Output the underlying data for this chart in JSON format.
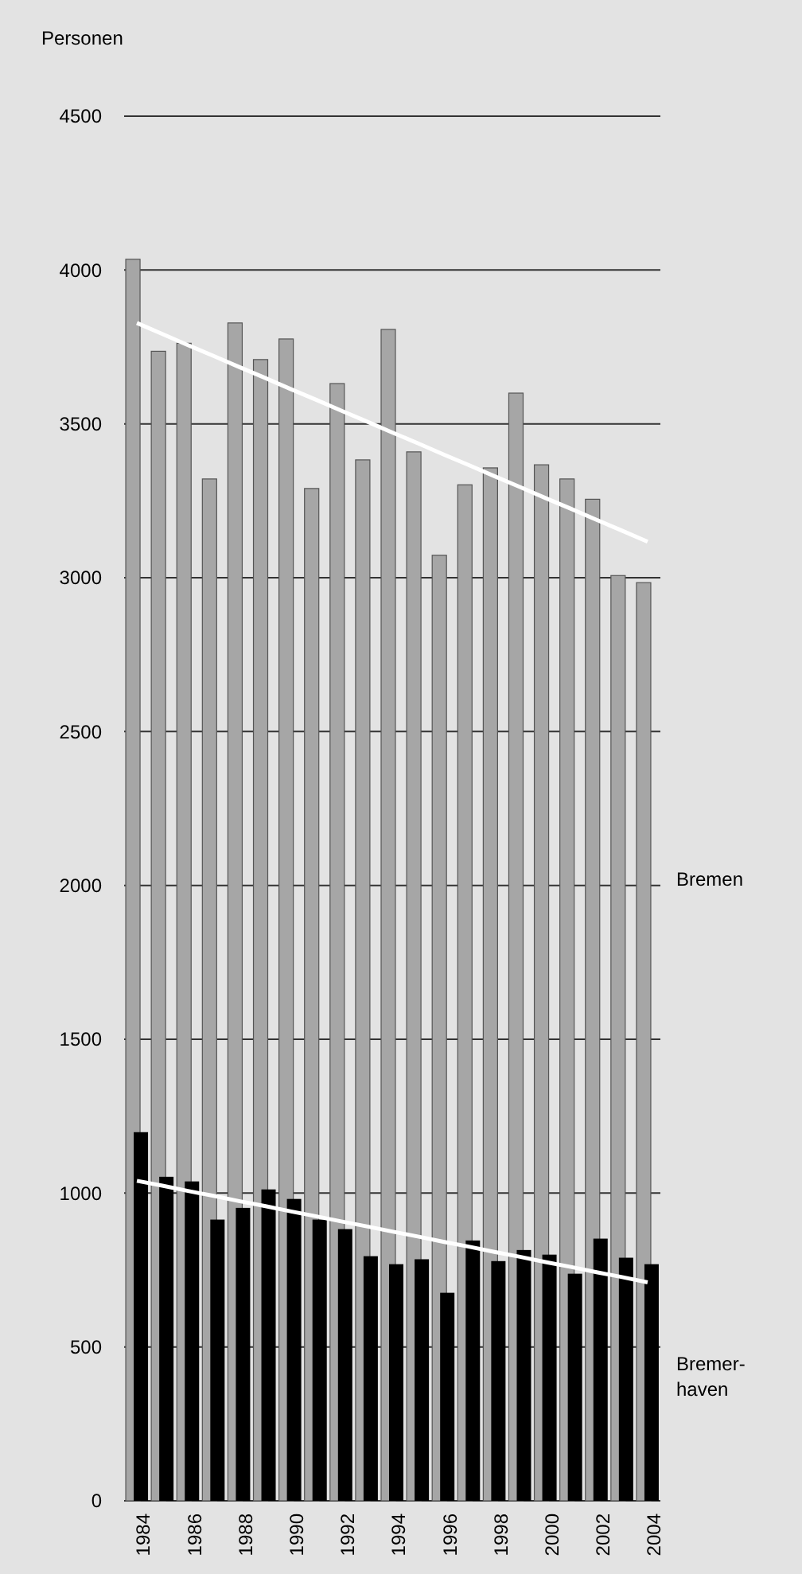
{
  "chart_data": {
    "type": "bar",
    "ylabel": "Personen",
    "categories": [
      "1984",
      null,
      "1986",
      null,
      "1988",
      null,
      "1990",
      null,
      "1992",
      null,
      "1994",
      null,
      "1996",
      null,
      "1998",
      null,
      "2000",
      null,
      "2002",
      null,
      "2004"
    ],
    "series": [
      {
        "name": "Bremen",
        "color": "#a6a6a6",
        "values": [
          4035,
          3736,
          3762,
          3321,
          3828,
          3709,
          3776,
          3290,
          3631,
          3383,
          3807,
          3409,
          3073,
          3302,
          3357,
          3600,
          3367,
          3321,
          3255,
          3007,
          2984
        ]
      },
      {
        "name": "Bremer-haven",
        "color": "#000000",
        "values": [
          1198,
          1053,
          1038,
          914,
          952,
          1012,
          981,
          914,
          883,
          795,
          769,
          785,
          676,
          846,
          779,
          815,
          800,
          738,
          852,
          790,
          769
        ]
      },
      {
        "type": "line",
        "color": "#ffffff",
        "values": [
          3828,
          3792,
          3756,
          3721,
          3685,
          3650,
          3614,
          3579,
          3543,
          3508,
          3472,
          3437,
          3401,
          3366,
          3330,
          3295,
          3259,
          3224,
          3188,
          3153,
          3117
        ]
      },
      {
        "type": "line",
        "color": "#ffffff",
        "values": [
          1040,
          1024,
          1007,
          991,
          974,
          958,
          941,
          925,
          908,
          892,
          875,
          859,
          842,
          826,
          809,
          793,
          776,
          760,
          743,
          727,
          710
        ]
      }
    ],
    "ylim": [
      0,
      4500
    ],
    "yticks": [
      0,
      500,
      1000,
      1500,
      2000,
      2500,
      3000,
      3500,
      4000,
      4500
    ],
    "grid": "y"
  }
}
